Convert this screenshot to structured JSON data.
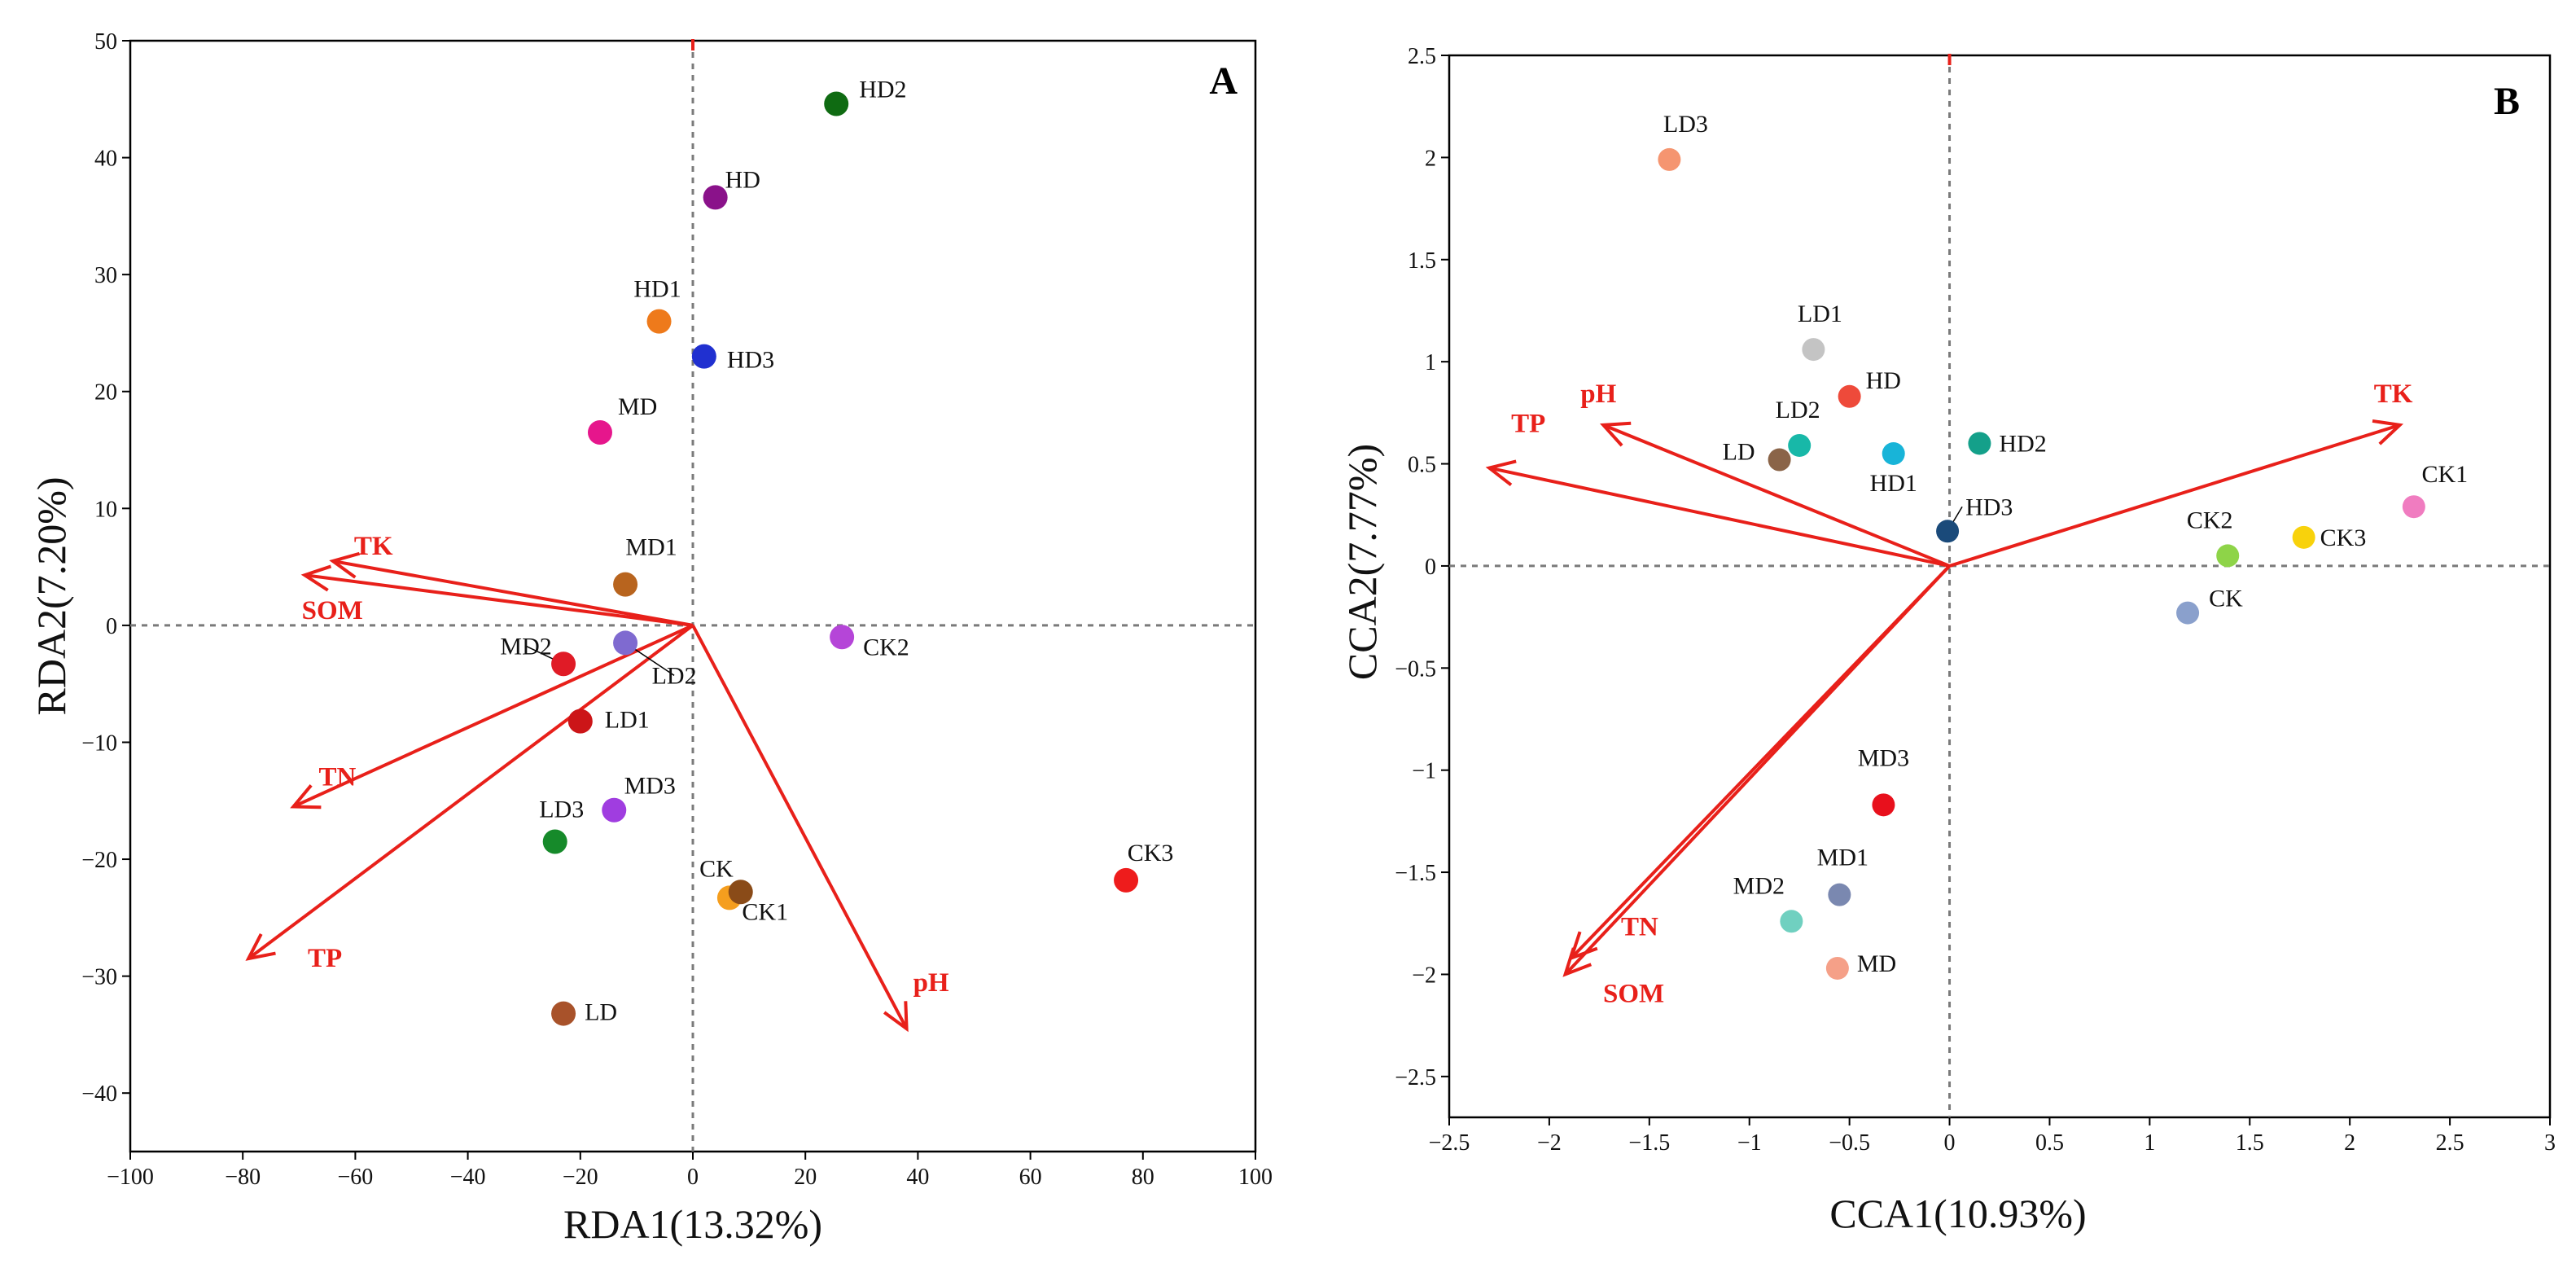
{
  "chart_data": [
    {
      "type": "scatter",
      "panel_label": "A",
      "xlabel": "RDA1(13.32%)",
      "ylabel": "RDA2(7.20%)",
      "xlim": [
        -100,
        100
      ],
      "ylim": [
        -45,
        50
      ],
      "xticks": [
        -100,
        -80,
        -60,
        -40,
        -20,
        0,
        20,
        40,
        60,
        80,
        100
      ],
      "yticks": [
        -40,
        -30,
        -20,
        -10,
        0,
        10,
        20,
        30,
        40,
        50
      ],
      "points": [
        {
          "label": "HD2",
          "x": 25.5,
          "y": 44.6,
          "color": "#0f6b12"
        },
        {
          "label": "HD",
          "x": 4,
          "y": 36.6,
          "color": "#8a128a"
        },
        {
          "label": "HD1",
          "x": -6,
          "y": 26,
          "color": "#ee7a1b"
        },
        {
          "label": "HD3",
          "x": 2,
          "y": 23,
          "color": "#2030d0"
        },
        {
          "label": "MD",
          "x": -16.5,
          "y": 16.5,
          "color": "#e6168c"
        },
        {
          "label": "MD1",
          "x": -12,
          "y": 3.5,
          "color": "#b8641e"
        },
        {
          "label": "MD2",
          "x": -23,
          "y": -3.3,
          "color": "#e01b26"
        },
        {
          "label": "LD2",
          "x": -12,
          "y": -1.5,
          "color": "#7f6ad0"
        },
        {
          "label": "LD1",
          "x": -20,
          "y": -8.2,
          "color": "#cc1518"
        },
        {
          "label": "CK2",
          "x": 26.5,
          "y": -1,
          "color": "#b545d8"
        },
        {
          "label": "MD3",
          "x": -14,
          "y": -15.8,
          "color": "#a03de0"
        },
        {
          "label": "LD3",
          "x": -24.5,
          "y": -18.5,
          "color": "#168a2a"
        },
        {
          "label": "CK",
          "x": 6.5,
          "y": -23.3,
          "color": "#f59e1e"
        },
        {
          "label": "CK1",
          "x": 8.5,
          "y": -22.8,
          "color": "#8a4b18"
        },
        {
          "label": "CK3",
          "x": 77,
          "y": -21.8,
          "color": "#ee1c1c"
        },
        {
          "label": "LD",
          "x": -23,
          "y": -33.2,
          "color": "#a8522a"
        }
      ],
      "arrows": [
        {
          "label": "TK",
          "x": -64,
          "y": 5.5
        },
        {
          "label": "SOM",
          "x": -69,
          "y": 4.3
        },
        {
          "label": "TN",
          "x": -71,
          "y": -15.5
        },
        {
          "label": "TP",
          "x": -79,
          "y": -28.5
        },
        {
          "label": "pH",
          "x": 38,
          "y": -34.5
        }
      ]
    },
    {
      "type": "scatter",
      "panel_label": "B",
      "xlabel": "CCA1(10.93%)",
      "ylabel": "CCA2(7.77%)",
      "xlim": [
        -2.5,
        3
      ],
      "ylim": [
        -2.7,
        2.5
      ],
      "xticks": [
        -2.5,
        -2,
        -1.5,
        -1,
        -0.5,
        0,
        0.5,
        1,
        1.5,
        2,
        2.5,
        3
      ],
      "yticks": [
        -2.5,
        -2,
        -1.5,
        -1,
        -0.5,
        0,
        0.5,
        1,
        1.5,
        2,
        2.5
      ],
      "points": [
        {
          "label": "LD3",
          "x": -1.4,
          "y": 1.99,
          "color": "#f59570"
        },
        {
          "label": "LD1",
          "x": -0.68,
          "y": 1.06,
          "color": "#c4c4c4"
        },
        {
          "label": "HD",
          "x": -0.5,
          "y": 0.83,
          "color": "#ee4a3a"
        },
        {
          "label": "LD2",
          "x": -0.75,
          "y": 0.59,
          "color": "#18b8a8"
        },
        {
          "label": "LD",
          "x": -0.85,
          "y": 0.52,
          "color": "#8a6448"
        },
        {
          "label": "HD1",
          "x": -0.28,
          "y": 0.55,
          "color": "#18b4d8"
        },
        {
          "label": "HD2",
          "x": 0.15,
          "y": 0.6,
          "color": "#14a08a"
        },
        {
          "label": "HD3",
          "x": -0.01,
          "y": 0.17,
          "color": "#1a4a7a"
        },
        {
          "label": "CK1",
          "x": 2.32,
          "y": 0.29,
          "color": "#f07cc0"
        },
        {
          "label": "CK2",
          "x": 1.39,
          "y": 0.05,
          "color": "#8ed448"
        },
        {
          "label": "CK3",
          "x": 1.77,
          "y": 0.14,
          "color": "#f8d20c"
        },
        {
          "label": "CK",
          "x": 1.19,
          "y": -0.23,
          "color": "#8aa0cc"
        },
        {
          "label": "MD3",
          "x": -0.33,
          "y": -1.17,
          "color": "#e8101c"
        },
        {
          "label": "MD1",
          "x": -0.55,
          "y": -1.61,
          "color": "#7a88b0"
        },
        {
          "label": "MD2",
          "x": -0.79,
          "y": -1.74,
          "color": "#70d0c0"
        },
        {
          "label": "MD",
          "x": -0.56,
          "y": -1.97,
          "color": "#f5a088"
        }
      ],
      "arrows": [
        {
          "label": "TK",
          "x": 2.25,
          "y": 0.69
        },
        {
          "label": "TP",
          "x": -2.3,
          "y": 0.48
        },
        {
          "label": "pH",
          "x": -1.73,
          "y": 0.69
        },
        {
          "label": "TN",
          "x": -1.89,
          "y": -1.92
        },
        {
          "label": "SOM",
          "x": -1.92,
          "y": -2.0
        }
      ]
    }
  ],
  "colors": {
    "arrow": "#e8201a",
    "axis": "#000000",
    "zero_line": "#808080"
  }
}
